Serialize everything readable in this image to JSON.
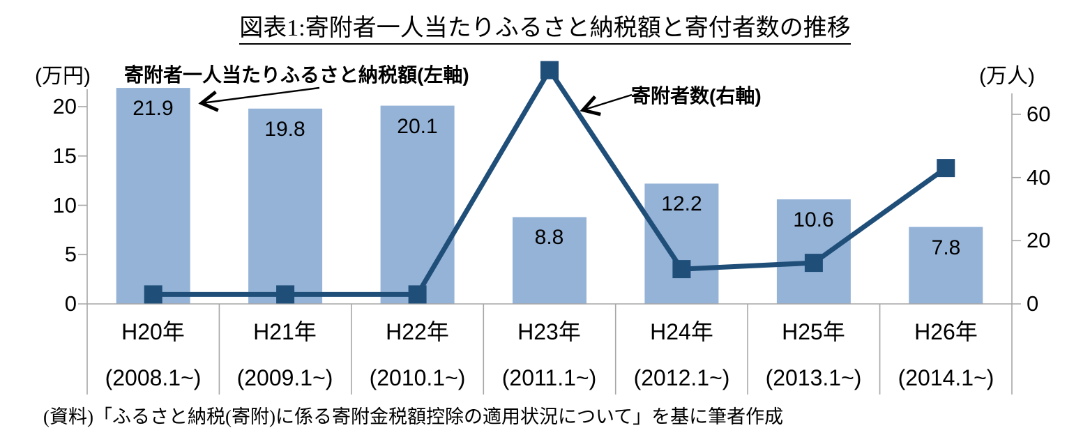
{
  "title": "図表1:寄附者一人当たりふるさと納税額と寄付者数の推移",
  "source_note": "(資料)「ふるさと納税(寄附)に係る寄附金税額控除の適用状況について」を基に筆者作成",
  "annotations": {
    "bar_series_label": "寄附者一人当たりふるさと納税額(左軸)",
    "line_series_label": "寄附者数(右軸)"
  },
  "chart_data": {
    "type": "combo",
    "title": "図表1:寄附者一人当たりふるさと納税額と寄付者数の推移",
    "categories": [
      "H20年",
      "H21年",
      "H22年",
      "H23年",
      "H24年",
      "H25年",
      "H26年"
    ],
    "category_periods": [
      "(2008.1~)",
      "(2009.1~)",
      "(2010.1~)",
      "(2011.1~)",
      "(2012.1~)",
      "(2013.1~)",
      "(2014.1~)"
    ],
    "series": [
      {
        "name": "寄附者一人当たりふるさと納税額(左軸)",
        "type": "bar",
        "axis": "left",
        "unit": "万円",
        "values": [
          21.9,
          19.8,
          20.1,
          8.8,
          12.2,
          10.6,
          7.8
        ],
        "data_labels": [
          "21.9",
          "19.8",
          "20.1",
          "8.8",
          "12.2",
          "10.6",
          "7.8"
        ]
      },
      {
        "name": "寄附者数(右軸)",
        "type": "line",
        "axis": "right",
        "unit": "万人",
        "values": [
          3,
          3,
          3,
          74,
          11,
          13,
          43
        ],
        "data_labels": []
      }
    ],
    "left_axis": {
      "unit_label": "(万円)",
      "ticks": [
        "0",
        "5",
        "10",
        "15",
        "20"
      ],
      "tick_values": [
        0,
        5,
        10,
        15,
        20
      ],
      "range": [
        0,
        20
      ]
    },
    "right_axis": {
      "unit_label": "(万人)",
      "ticks": [
        "0",
        "20",
        "40",
        "60"
      ],
      "tick_values": [
        0,
        20,
        40,
        60
      ],
      "range": [
        0,
        60
      ]
    },
    "grid": false,
    "legend": "none"
  },
  "colors": {
    "bar_fill": "#95B3D7",
    "line": "#1F4E79",
    "axis": "#A6A6A6",
    "text": "#000000"
  }
}
